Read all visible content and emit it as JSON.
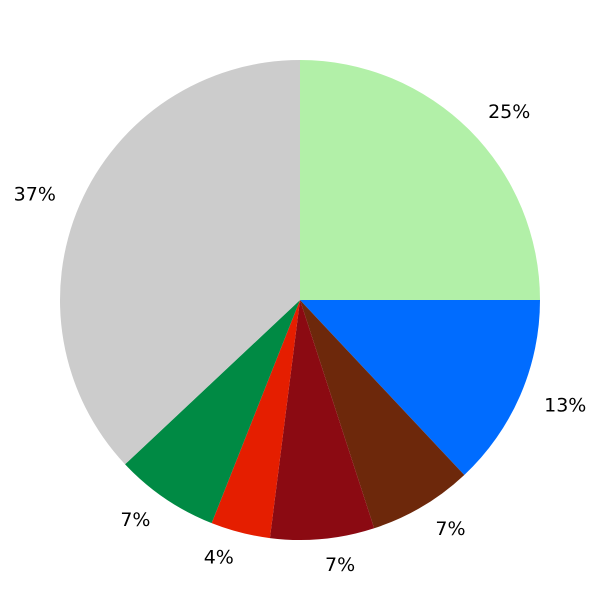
{
  "chart_data": {
    "type": "pie",
    "start_angle": "top",
    "direction": "clockwise",
    "slices": [
      {
        "value": 25,
        "label": "25%",
        "color": "#b2f0a8"
      },
      {
        "value": 13,
        "label": "13%",
        "color": "#006cff"
      },
      {
        "value": 7,
        "label": "7%",
        "color": "#6d280b"
      },
      {
        "value": 7,
        "label": "7%",
        "color": "#8b0a12"
      },
      {
        "value": 4,
        "label": "4%",
        "color": "#e51e00"
      },
      {
        "value": 7,
        "label": "7%",
        "color": "#008a44"
      },
      {
        "value": 37,
        "label": "37%",
        "color": "#cccccc"
      }
    ]
  }
}
